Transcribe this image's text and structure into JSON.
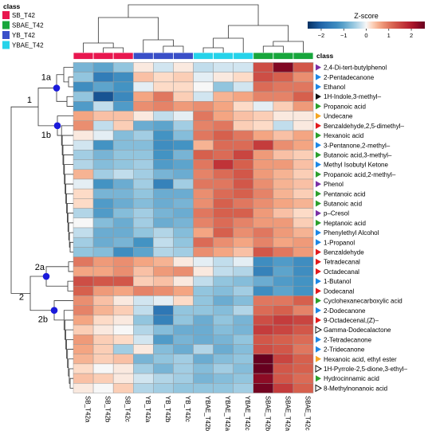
{
  "chart_data": {
    "type": "heatmap",
    "title": "",
    "colorbar": {
      "title": "Z-score",
      "ticks": [
        -2,
        -1,
        0,
        1,
        2
      ],
      "tick_labels": [
        "−2",
        "−1",
        "0",
        "1",
        "2"
      ],
      "range": [
        -2.6,
        2.6
      ],
      "colors": {
        "low": "#053061",
        "mid": "#f7f7f7",
        "high": "#67001f"
      }
    },
    "legend": {
      "title": "class",
      "placement": "top-left",
      "items": [
        {
          "label": "SB_T42",
          "color": "#e8174f"
        },
        {
          "label": "SBAE_T42",
          "color": "#17a63c"
        },
        {
          "label": "YB_T42",
          "color": "#3a4fc8"
        },
        {
          "label": "YBAE_T42",
          "color": "#26d3ea"
        }
      ]
    },
    "class_row_label": "class",
    "columns": [
      {
        "label": "SB_T42a",
        "class": "SB_T42"
      },
      {
        "label": "SB_T42b",
        "class": "SB_T42"
      },
      {
        "label": "SB_T42c",
        "class": "SB_T42"
      },
      {
        "label": "YB_T42a",
        "class": "YB_T42"
      },
      {
        "label": "YB_T42b",
        "class": "YB_T42"
      },
      {
        "label": "YB_T42c",
        "class": "YB_T42"
      },
      {
        "label": "YBAE_T42b",
        "class": "YBAE_T42"
      },
      {
        "label": "YBAE_T42a",
        "class": "YBAE_T42"
      },
      {
        "label": "YBAE_T42c",
        "class": "YBAE_T42"
      },
      {
        "label": "SBAE_T42b",
        "class": "SBAE_T42"
      },
      {
        "label": "SBAE_T42a",
        "class": "SBAE_T42"
      },
      {
        "label": "SBAE_T42c",
        "class": "SBAE_T42"
      }
    ],
    "rows": [
      {
        "label": "2,4-Di-tert-butylphenol",
        "marker": "purple-fill"
      },
      {
        "label": "2-Pentadecanone",
        "marker": "blue-fill"
      },
      {
        "label": "Ethanol",
        "marker": "blue-fill"
      },
      {
        "label": "1H-Indole,3-methyl–",
        "marker": "black-fill"
      },
      {
        "label": "Propanoic acid",
        "marker": "green-fill"
      },
      {
        "label": "Undecane",
        "marker": "orange-fill"
      },
      {
        "label": "Benzaldehyde,2,5-dimethyl–",
        "marker": "red-fill"
      },
      {
        "label": "Hexanoic acid",
        "marker": "green-fill"
      },
      {
        "label": "3-Pentanone,2-methyl–",
        "marker": "blue-fill"
      },
      {
        "label": "Butanoic acid,3-methyl–",
        "marker": "green-fill"
      },
      {
        "label": "Methyl Isobutyl Ketone",
        "marker": "blue-fill"
      },
      {
        "label": "Propanoic acid,2-methyl–",
        "marker": "green-fill"
      },
      {
        "label": "Phenol",
        "marker": "purple-fill"
      },
      {
        "label": "Pentanoic acid",
        "marker": "green-fill"
      },
      {
        "label": "Butanoic acid",
        "marker": "green-fill"
      },
      {
        "label": "p–Cresol",
        "marker": "purple-fill"
      },
      {
        "label": "Heptanoic acid",
        "marker": "green-fill"
      },
      {
        "label": "Phenylethyl Alcohol",
        "marker": "blue-fill"
      },
      {
        "label": "1-Propanol",
        "marker": "blue-fill"
      },
      {
        "label": "Benzaldehyde",
        "marker": "red-fill"
      },
      {
        "label": "Tetradecanal",
        "marker": "red-fill"
      },
      {
        "label": "Octadecanal",
        "marker": "red-fill"
      },
      {
        "label": "1-Butanol",
        "marker": "blue-fill"
      },
      {
        "label": "Dodecanal",
        "marker": "red-fill"
      },
      {
        "label": "Cyclohexanecarboxylic acid",
        "marker": "green-fill"
      },
      {
        "label": "2-Dodecanone",
        "marker": "blue-fill"
      },
      {
        "label": "9-Octadecenal,(Z)–",
        "marker": "red-fill"
      },
      {
        "label": "Gamma-Dodecalactone",
        "marker": "black-outline"
      },
      {
        "label": "2-Tetradecanone",
        "marker": "blue-fill"
      },
      {
        "label": "2-Tridecanone",
        "marker": "blue-fill"
      },
      {
        "label": "Hexanoic acid, ethyl ester",
        "marker": "orange-fill"
      },
      {
        "label": "1H-Pyrrole-2,5-dione,3-ethyl–",
        "marker": "black-outline"
      },
      {
        "label": "Hydrocinnamic acid",
        "marker": "green-fill"
      },
      {
        "label": "8-Methylnonanoic acid",
        "marker": "black-outline"
      }
    ],
    "values": [
      [
        -0.8,
        -1.0,
        -0.6,
        0.1,
        -0.2,
        0.1,
        -0.3,
        -0.2,
        -0.2,
        1.4,
        2.4,
        1.3
      ],
      [
        -0.6,
        -1.6,
        -1.3,
        0.4,
        0.2,
        0.3,
        -0.1,
        0.1,
        0.2,
        1.4,
        1.2,
        0.8
      ],
      [
        -1.3,
        -1.0,
        -1.2,
        -0.1,
        0.2,
        0.2,
        0.0,
        -0.6,
        -0.2,
        1.1,
        1.0,
        1.0
      ],
      [
        -0.6,
        -2.2,
        -1.4,
        0.6,
        1.0,
        0.3,
        -0.2,
        0.5,
        0.6,
        0.9,
        0.9,
        1.2
      ],
      [
        -1.1,
        -0.3,
        -1.1,
        0.8,
        0.9,
        0.7,
        0.8,
        0.6,
        0.2,
        -0.1,
        0.3,
        0.7
      ],
      [
        0.6,
        0.4,
        0.4,
        0.1,
        -0.3,
        -0.1,
        1.0,
        0.6,
        0.4,
        0.3,
        0.1,
        0.1
      ],
      [
        0.8,
        -0.3,
        0.3,
        -0.9,
        -1.0,
        -0.5,
        0.9,
        1.0,
        0.3,
        0.2,
        -0.3,
        0.1
      ],
      [
        0.1,
        -0.1,
        -0.7,
        -0.5,
        -1.2,
        -0.7,
        1.0,
        1.2,
        1.0,
        0.6,
        0.4,
        0.6
      ],
      [
        -0.2,
        -1.2,
        -0.7,
        -0.7,
        -1.3,
        -1.2,
        0.5,
        1.1,
        1.1,
        1.6,
        0.8,
        0.6
      ],
      [
        -0.5,
        -0.8,
        -0.6,
        -0.6,
        -1.2,
        -0.8,
        1.2,
        1.1,
        1.5,
        0.7,
        0.4,
        0.3
      ],
      [
        -0.4,
        -0.7,
        -0.6,
        -0.5,
        -1.1,
        -1.0,
        1.0,
        1.7,
        1.2,
        0.7,
        0.7,
        0.4
      ],
      [
        0.5,
        -0.5,
        -0.3,
        -0.5,
        -0.8,
        -0.9,
        0.9,
        1.1,
        1.3,
        0.7,
        0.5,
        0.3
      ],
      [
        -0.1,
        -1.2,
        -0.9,
        -0.5,
        -1.5,
        -0.5,
        1.0,
        1.0,
        1.3,
        0.8,
        0.5,
        0.4
      ],
      [
        0.2,
        -0.8,
        -0.8,
        -0.6,
        -0.9,
        -0.9,
        0.8,
        1.1,
        1.2,
        0.9,
        0.5,
        0.3
      ],
      [
        0.2,
        -1.1,
        -0.9,
        -0.7,
        -0.9,
        -0.8,
        0.8,
        1.2,
        1.0,
        0.8,
        0.6,
        0.5
      ],
      [
        -0.4,
        -1.1,
        -0.7,
        -0.5,
        -0.8,
        -0.9,
        1.0,
        1.2,
        1.2,
        0.7,
        0.4,
        0.2
      ],
      [
        0.0,
        -0.7,
        -0.9,
        -0.5,
        -0.9,
        -0.8,
        0.9,
        1.1,
        0.9,
        0.7,
        0.7,
        0.3
      ],
      [
        -0.3,
        -0.9,
        -0.9,
        -0.6,
        -0.4,
        -0.7,
        0.6,
        1.2,
        0.8,
        1.0,
        0.7,
        0.5
      ],
      [
        -0.5,
        -0.9,
        -0.8,
        -1.2,
        -0.3,
        -0.6,
        1.1,
        0.8,
        0.6,
        0.9,
        0.6,
        0.7
      ],
      [
        -0.6,
        -0.7,
        -1.3,
        -1.0,
        -0.4,
        -0.5,
        0.8,
        0.6,
        0.4,
        1.3,
        1.0,
        0.7
      ],
      [
        1.0,
        0.7,
        0.8,
        0.6,
        0.5,
        0.1,
        -0.1,
        -0.3,
        -0.1,
        -1.3,
        -1.1,
        -1.3
      ],
      [
        0.6,
        0.6,
        0.8,
        0.4,
        0.7,
        0.8,
        0.1,
        -0.3,
        -0.4,
        -1.5,
        -1.0,
        -1.3
      ],
      [
        1.4,
        1.3,
        1.3,
        0.3,
        0.4,
        0.1,
        -0.3,
        -0.6,
        -0.7,
        -0.9,
        -1.1,
        -1.2
      ],
      [
        1.2,
        0.7,
        0.6,
        0.9,
        0.8,
        0.6,
        -0.6,
        -0.7,
        -0.5,
        -1.3,
        -1.0,
        -1.2
      ],
      [
        0.8,
        0.4,
        0.1,
        -0.2,
        -0.1,
        0.2,
        -0.6,
        -0.9,
        -0.7,
        1.0,
        1.0,
        1.2
      ],
      [
        0.9,
        0.5,
        0.3,
        -0.3,
        -1.7,
        -0.6,
        -0.6,
        -0.7,
        -0.4,
        1.1,
        1.2,
        0.9
      ],
      [
        0.6,
        0.2,
        0.1,
        -0.6,
        -1.5,
        -0.6,
        -0.9,
        -0.6,
        -0.8,
        1.4,
        1.6,
        1.5
      ],
      [
        0.3,
        0.1,
        0.0,
        -0.4,
        -0.7,
        -0.9,
        -0.9,
        -0.7,
        -0.8,
        1.6,
        1.5,
        1.3
      ],
      [
        0.7,
        0.3,
        0.2,
        -0.2,
        -1.1,
        -0.8,
        -0.9,
        -0.8,
        -0.6,
        1.3,
        1.2,
        1.1
      ],
      [
        0.6,
        0.3,
        -0.5,
        0.1,
        -0.7,
        -0.9,
        -0.4,
        -0.9,
        -0.7,
        1.4,
        1.3,
        1.0
      ],
      [
        0.5,
        0.3,
        0.4,
        -0.8,
        -0.6,
        -0.5,
        -0.9,
        -0.7,
        -0.6,
        2.6,
        1.5,
        1.2
      ],
      [
        0.2,
        0.0,
        0.1,
        -0.5,
        -0.8,
        -0.5,
        -0.7,
        -0.5,
        -0.7,
        2.7,
        1.3,
        1.2
      ],
      [
        0.4,
        0.3,
        0.1,
        -0.2,
        -0.4,
        -0.5,
        -0.8,
        -0.7,
        -0.6,
        2.3,
        1.3,
        1.1
      ],
      [
        0.1,
        0.0,
        0.3,
        -0.4,
        -0.5,
        -0.6,
        -0.6,
        -0.6,
        -0.5,
        2.5,
        1.6,
        1.2
      ]
    ],
    "row_clusters": [
      {
        "label": "1",
        "highlighted": false
      },
      {
        "label": "1a",
        "highlighted": true
      },
      {
        "label": "1b",
        "highlighted": true
      },
      {
        "label": "2",
        "highlighted": false
      },
      {
        "label": "2a",
        "highlighted": true
      },
      {
        "label": "2b",
        "highlighted": true
      }
    ],
    "marker_colors": {
      "purple-fill": "#7b2fa6",
      "blue-fill": "#1e88e5",
      "black-fill": "#111111",
      "green-fill": "#2ca02c",
      "orange-fill": "#f5a623",
      "red-fill": "#e31a1c",
      "black-outline": "#111111"
    },
    "cluster_node_color": "#1a1adb",
    "grid": true
  }
}
